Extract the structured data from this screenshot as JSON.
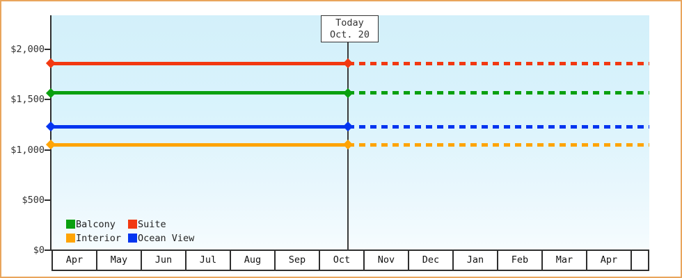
{
  "page": {
    "background": "#ffffff",
    "border_color": "#e9a55c"
  },
  "chart_data": {
    "type": "line",
    "title": "",
    "description": "Cruise cabin price history: flat price lines per cabin category, solid before today, dotted projection after today",
    "plot_background_top": "#d3f0fa",
    "plot_background_bottom": "#f6fcfe",
    "x_categories": [
      "Apr",
      "May",
      "Jun",
      "Jul",
      "Aug",
      "Sep",
      "Oct",
      "Nov",
      "Dec",
      "Jan",
      "Feb",
      "Mar",
      "Apr"
    ],
    "y_ticks": [
      {
        "label": "$0",
        "value": 0
      },
      {
        "label": "$500",
        "value": 500
      },
      {
        "label": "$1,000",
        "value": 1000
      },
      {
        "label": "$1,500",
        "value": 1500
      },
      {
        "label": "$2,000",
        "value": 2000
      }
    ],
    "ylim": [
      0,
      2340
    ],
    "grid": false,
    "today": {
      "line1": "Today",
      "line2": "Oct. 20",
      "month_index": 6,
      "day_fraction": 0.645
    },
    "series": [
      {
        "name": "Suite",
        "color": "#f23911",
        "value": 1860,
        "style_before_today": "solid",
        "style_after_today": "dashed"
      },
      {
        "name": "Balcony",
        "color": "#0aa00f",
        "value": 1565,
        "style_before_today": "solid",
        "style_after_today": "dashed"
      },
      {
        "name": "Ocean View",
        "color": "#0435f0",
        "value": 1230,
        "style_before_today": "solid",
        "style_after_today": "dashed"
      },
      {
        "name": "Interior",
        "color": "#ffa405",
        "value": 1050,
        "style_before_today": "solid",
        "style_after_today": "dashed"
      }
    ],
    "legend": {
      "position": "bottom-left",
      "items": [
        {
          "label": "Balcony",
          "color": "#0aa00f"
        },
        {
          "label": "Suite",
          "color": "#f23911"
        },
        {
          "label": "Interior",
          "color": "#ffa405"
        },
        {
          "label": "Ocean View",
          "color": "#0435f0"
        }
      ]
    }
  }
}
